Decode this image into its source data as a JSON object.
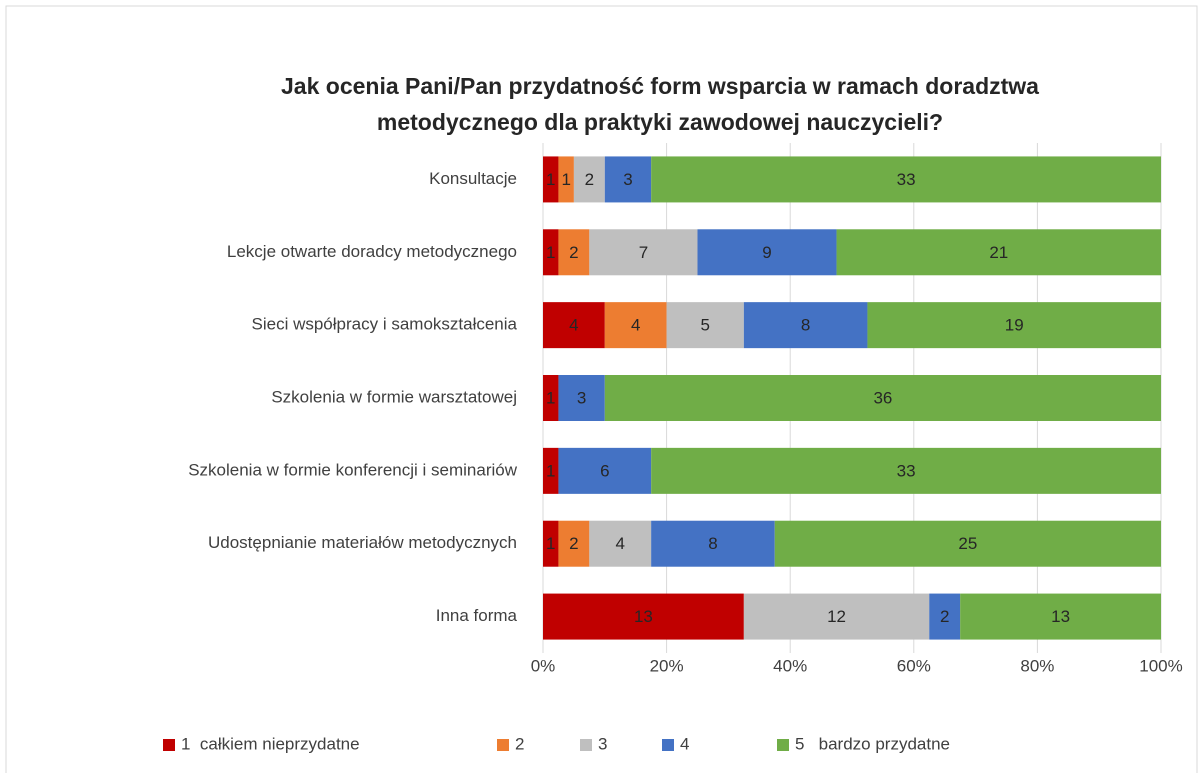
{
  "chart_data": {
    "type": "stacked_percent_barh",
    "title": [
      "Jak ocenia Pani/Pan przydatność form wsparcia w ramach doradztwa",
      "metodycznego dla praktyki zawodowej nauczycieli?"
    ],
    "categories": [
      "Konsultacje",
      "Lekcje otwarte doradcy metodycznego",
      "Sieci współpracy i samokształcenia",
      "Szkolenia w formie warsztatowej",
      "Szkolenia w formie konferencji i  seminariów",
      "Udostępnianie materiałów metodycznych",
      "Inna forma"
    ],
    "series": [
      {
        "name": "1  całkiem nieprzydatne",
        "color": "#c00000",
        "values": [
          1,
          1,
          4,
          1,
          1,
          1,
          13
        ]
      },
      {
        "name": "2",
        "color": "#ed7d31",
        "values": [
          1,
          2,
          4,
          null,
          null,
          2,
          null
        ]
      },
      {
        "name": "3",
        "color": "#bfbfbf",
        "values": [
          2,
          7,
          5,
          null,
          null,
          4,
          12
        ]
      },
      {
        "name": "4",
        "color": "#4472c4",
        "values": [
          3,
          9,
          8,
          3,
          6,
          8,
          2
        ]
      },
      {
        "name": "5   bardzo przydatne",
        "color": "#70ad47",
        "values": [
          33,
          21,
          19,
          36,
          33,
          25,
          13
        ]
      }
    ],
    "xlim": [
      0,
      100
    ],
    "xticks": [
      {
        "value": 0,
        "label": "0%"
      },
      {
        "value": 20,
        "label": "20%"
      },
      {
        "value": 40,
        "label": "40%"
      },
      {
        "value": 60,
        "label": "60%"
      },
      {
        "value": 80,
        "label": "80%"
      },
      {
        "value": 100,
        "label": "100%"
      }
    ],
    "grid": true,
    "legend": "bottom"
  }
}
